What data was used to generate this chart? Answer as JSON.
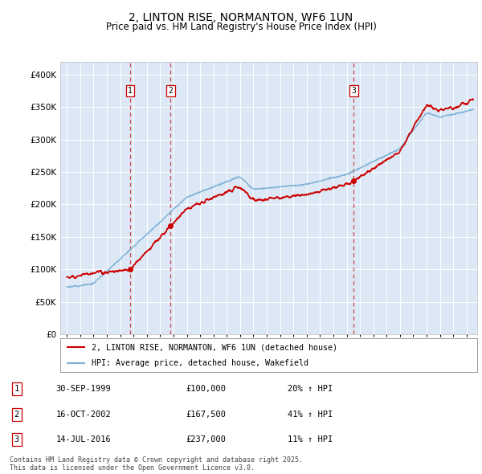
{
  "title": "2, LINTON RISE, NORMANTON, WF6 1UN",
  "subtitle": "Price paid vs. HM Land Registry's House Price Index (HPI)",
  "xlim_start": 1994.5,
  "xlim_end": 2025.8,
  "ylim": [
    0,
    420000
  ],
  "plot_bg_color": "#dce8f5",
  "transactions": [
    {
      "num": 1,
      "date_dec": 1999.75,
      "price": 100000,
      "label": "30-SEP-1999",
      "amount": "£100,000",
      "hpi_pct": "20% ↑ HPI"
    },
    {
      "num": 2,
      "date_dec": 2002.79,
      "price": 167500,
      "label": "16-OCT-2002",
      "amount": "£167,500",
      "hpi_pct": "41% ↑ HPI"
    },
    {
      "num": 3,
      "date_dec": 2016.54,
      "price": 237000,
      "label": "14-JUL-2016",
      "amount": "£237,000",
      "hpi_pct": "11% ↑ HPI"
    }
  ],
  "hpi_line_color": "#7bafd4",
  "price_line_color": "#cc0000",
  "vline_color": "#cc0000",
  "yticks": [
    0,
    50000,
    100000,
    150000,
    200000,
    250000,
    300000,
    350000,
    400000
  ],
  "ytick_labels": [
    "£0",
    "£50K",
    "£100K",
    "£150K",
    "£200K",
    "£250K",
    "£300K",
    "£350K",
    "£400K"
  ],
  "footer": "Contains HM Land Registry data © Crown copyright and database right 2025.\nThis data is licensed under the Open Government Licence v3.0.",
  "legend1": "2, LINTON RISE, NORMANTON, WF6 1UN (detached house)",
  "legend2": "HPI: Average price, detached house, Wakefield"
}
